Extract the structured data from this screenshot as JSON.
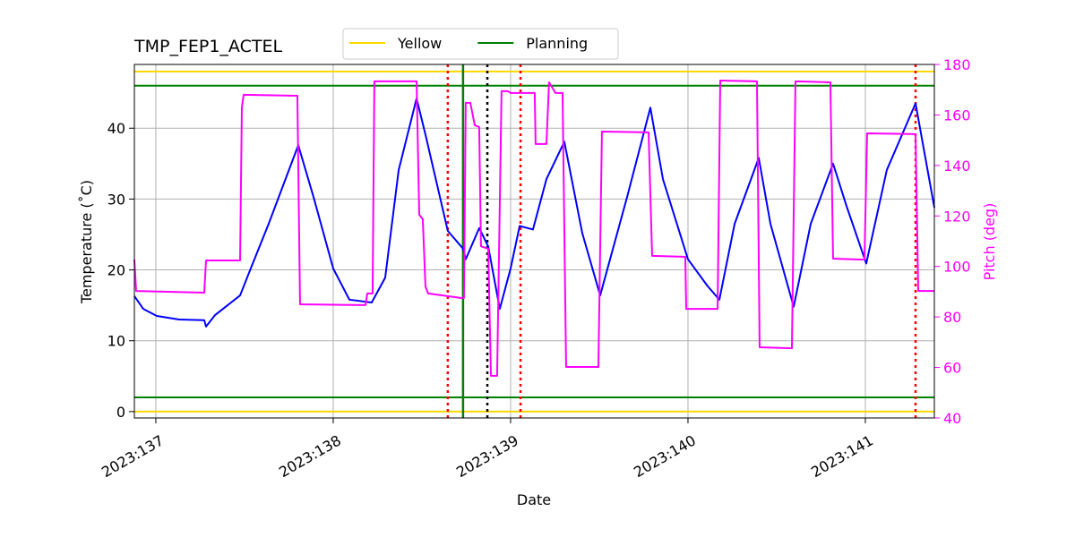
{
  "chart_data": {
    "type": "line",
    "title": "TMP_FEP1_ACTEL",
    "xlabel": "Date",
    "ylabel": "Temperature (˚C)",
    "y2label": "Pitch (deg)",
    "xlim": [
      136.879,
      141.389
    ],
    "xticks": [
      {
        "value": 137,
        "label": "2023:137"
      },
      {
        "value": 138,
        "label": "2023:138"
      },
      {
        "value": 139,
        "label": "2023:139"
      },
      {
        "value": 140,
        "label": "2023:140"
      },
      {
        "value": 141,
        "label": "2023:141"
      }
    ],
    "ylim": [
      -0.9,
      49
    ],
    "yticks": [
      0,
      10,
      20,
      30,
      40
    ],
    "y2lim": [
      40,
      180
    ],
    "y2ticks": [
      40,
      60,
      80,
      100,
      120,
      140,
      160,
      180
    ],
    "grid": true,
    "series": [
      {
        "color": "#0000ff",
        "x": [
          136.879,
          136.929,
          137.005,
          137.131,
          137.273,
          137.283,
          137.333,
          137.475,
          137.535,
          137.636,
          137.803,
          137.889,
          138.0,
          138.091,
          138.217,
          138.293,
          138.369,
          138.47,
          138.52,
          138.646,
          138.732,
          138.747,
          138.823,
          138.874,
          138.939,
          139.0,
          139.051,
          139.126,
          139.202,
          139.303,
          139.404,
          139.505,
          139.657,
          139.788,
          139.859,
          140.0,
          140.111,
          140.177,
          140.263,
          140.399,
          140.465,
          140.596,
          140.692,
          140.818,
          140.894,
          141.005,
          141.121,
          141.283,
          141.389
        ],
        "values": [
          16.3,
          14.5,
          13.5,
          13.0,
          12.9,
          12.0,
          13.6,
          16.4,
          20.2,
          26.5,
          37.6,
          30.3,
          20.2,
          15.8,
          15.4,
          18.9,
          34.1,
          44.2,
          39.1,
          25.5,
          23.0,
          21.5,
          25.9,
          23.3,
          14.5,
          20.2,
          26.2,
          25.7,
          32.8,
          38.1,
          25.2,
          16.4,
          30.3,
          42.9,
          32.8,
          21.5,
          17.7,
          15.8,
          26.5,
          35.8,
          26.5,
          14.8,
          26.5,
          35.0,
          29.0,
          20.9,
          34.1,
          43.5,
          28.8
        ]
      },
      {
        "color": "#ff00ff",
        "axis": "y2",
        "x": [
          136.879,
          136.889,
          137.273,
          137.283,
          137.475,
          137.485,
          137.495,
          137.798,
          137.813,
          138.182,
          138.192,
          138.222,
          138.232,
          138.47,
          138.485,
          138.505,
          138.52,
          138.535,
          138.722,
          138.737,
          138.747,
          138.773,
          138.798,
          138.823,
          138.833,
          138.874,
          138.889,
          138.924,
          138.949,
          138.985,
          139.0,
          139.136,
          139.141,
          139.202,
          139.217,
          139.253,
          139.293,
          139.313,
          139.495,
          139.515,
          139.778,
          139.798,
          139.985,
          139.99,
          140.167,
          140.182,
          140.389,
          140.404,
          140.586,
          140.606,
          140.803,
          140.818,
          140.995,
          141.01,
          141.283,
          141.298,
          141.389
        ],
        "values": [
          102.7,
          90.3,
          89.6,
          102.4,
          102.4,
          163.0,
          168.0,
          167.6,
          85.0,
          84.7,
          89.3,
          89.3,
          173.3,
          173.3,
          120.5,
          118.7,
          92.1,
          89.3,
          87.5,
          87.5,
          164.8,
          164.8,
          155.9,
          155.2,
          108.0,
          107.0,
          56.7,
          56.7,
          169.4,
          169.4,
          168.7,
          168.7,
          148.5,
          148.5,
          172.9,
          168.7,
          168.7,
          60.2,
          60.2,
          153.4,
          153.1,
          104.2,
          103.8,
          83.2,
          83.2,
          173.6,
          173.3,
          68.0,
          67.6,
          173.3,
          172.9,
          103.1,
          102.7,
          152.7,
          152.4,
          90.3,
          90.3
        ]
      }
    ],
    "limit_lines": [
      {
        "name": "Yellow",
        "color": "#ffd700",
        "values": [
          0,
          48
        ]
      },
      {
        "name": "Planning",
        "color": "#008000",
        "values": [
          2,
          46
        ]
      }
    ],
    "vlines": [
      {
        "x": 138.646,
        "color": "#ff0000",
        "dash": "dotted"
      },
      {
        "x": 138.732,
        "color": "#008000",
        "dash": "solid"
      },
      {
        "x": 138.869,
        "color": "#000000",
        "dash": "dotted"
      },
      {
        "x": 139.056,
        "color": "#ff0000",
        "dash": "dotted"
      },
      {
        "x": 141.283,
        "color": "#ff0000",
        "dash": "dotted"
      }
    ]
  }
}
